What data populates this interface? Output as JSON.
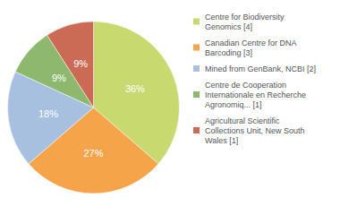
{
  "chart_data": {
    "type": "pie",
    "categories": [
      "Centre for Biodiversity\nGenomics [4]",
      "Canadian Centre for DNA\nBarcoding [3]",
      "Mined from GenBank, NCBI [2]",
      "Centre de Cooperation\nInternationale en Recherche\nAgronomiq... [1]",
      "Agricultural Scientific\nCollections Unit, New South\nWales [1]"
    ],
    "values": [
      36,
      27,
      18,
      9,
      9
    ],
    "value_labels": [
      "36%",
      "27%",
      "18%",
      "9%",
      "9%"
    ],
    "colors": [
      "#c8d96f",
      "#f5a44a",
      "#a8c0e0",
      "#8db86e",
      "#cc6b55"
    ],
    "data_labels": true,
    "legend": "upper right"
  }
}
